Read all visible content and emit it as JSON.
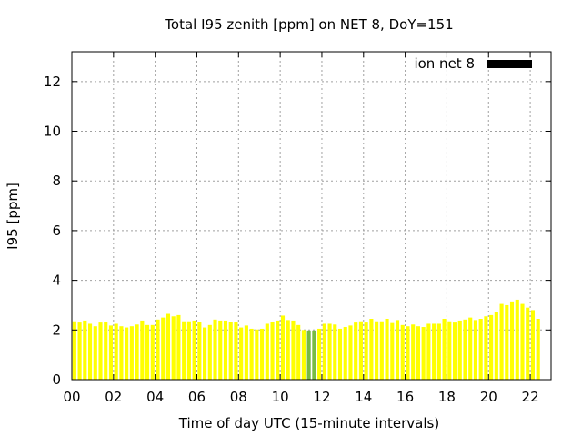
{
  "chart_data": {
    "type": "bar",
    "title": "Total I95 zenith [ppm] on NET 8, DoY=151",
    "xlabel": "Time of day UTC (15-minute intervals)",
    "ylabel": "I95 [ppm]",
    "xlim": [
      0,
      23
    ],
    "ylim": [
      0,
      13.2
    ],
    "xticks": [
      {
        "value": 0,
        "label": "00"
      },
      {
        "value": 2,
        "label": "02"
      },
      {
        "value": 4,
        "label": "04"
      },
      {
        "value": 6,
        "label": "06"
      },
      {
        "value": 8,
        "label": "08"
      },
      {
        "value": 10,
        "label": "10"
      },
      {
        "value": 12,
        "label": "12"
      },
      {
        "value": 14,
        "label": "14"
      },
      {
        "value": 16,
        "label": "16"
      },
      {
        "value": 18,
        "label": "18"
      },
      {
        "value": 20,
        "label": "20"
      },
      {
        "value": 22,
        "label": "22"
      }
    ],
    "yticks": [
      {
        "value": 0,
        "label": "0"
      },
      {
        "value": 2,
        "label": "2"
      },
      {
        "value": 4,
        "label": "4"
      },
      {
        "value": 6,
        "label": "6"
      },
      {
        "value": 8,
        "label": "8"
      },
      {
        "value": 10,
        "label": "10"
      },
      {
        "value": 12,
        "label": "12"
      }
    ],
    "grid": true,
    "legend": {
      "label": "ion net 8",
      "position": "top-right",
      "color": "#000000"
    },
    "bar_color": "#ffff00",
    "highlight_color": "#77bb44",
    "interval_hours": 0.25,
    "highlighted_indices": [
      45,
      46
    ],
    "values": [
      2.35,
      2.3,
      2.38,
      2.25,
      2.15,
      2.3,
      2.32,
      2.18,
      2.25,
      2.15,
      2.1,
      2.15,
      2.22,
      2.38,
      2.2,
      2.2,
      2.42,
      2.5,
      2.65,
      2.55,
      2.6,
      2.35,
      2.35,
      2.38,
      2.33,
      2.1,
      2.2,
      2.42,
      2.38,
      2.38,
      2.32,
      2.32,
      2.1,
      2.18,
      2.05,
      2.02,
      2.05,
      2.25,
      2.32,
      2.38,
      2.58,
      2.4,
      2.38,
      2.2,
      2.0,
      1.98,
      1.98,
      2.05,
      2.25,
      2.25,
      2.22,
      2.05,
      2.12,
      2.18,
      2.3,
      2.35,
      2.3,
      2.45,
      2.35,
      2.35,
      2.45,
      2.28,
      2.4,
      2.2,
      2.15,
      2.22,
      2.15,
      2.12,
      2.25,
      2.25,
      2.25,
      2.45,
      2.35,
      2.3,
      2.38,
      2.42,
      2.5,
      2.4,
      2.45,
      2.55,
      2.6,
      2.72,
      3.05,
      3.0,
      3.15,
      3.22,
      3.05,
      2.9,
      2.8,
      2.45
    ]
  }
}
